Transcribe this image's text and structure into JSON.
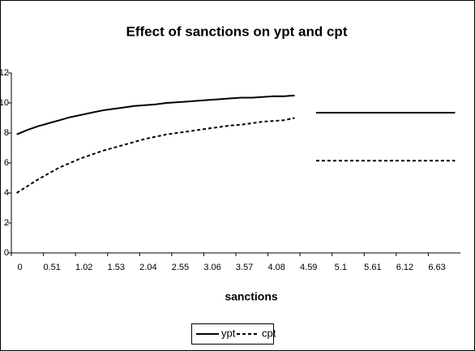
{
  "chart_data": {
    "type": "line",
    "title": "Effect of sanctions on ypt and cpt",
    "x_label": "sanctions",
    "categories": [
      "0",
      null,
      null,
      "0.51",
      null,
      null,
      "1.02",
      null,
      null,
      "1.53",
      null,
      null,
      "2.04",
      null,
      null,
      "2.55",
      null,
      null,
      "3.06",
      null,
      null,
      "3.57",
      null,
      null,
      "4.08",
      null,
      null,
      "4.59",
      null,
      null,
      "5.1",
      null,
      null,
      "5.61",
      null,
      null,
      "6.12",
      null,
      null,
      "6.63",
      null,
      null
    ],
    "series": [
      {
        "name": "ypt",
        "color": "#000000",
        "dash": "solid",
        "values": [
          7.9,
          8.2,
          8.45,
          8.65,
          8.85,
          9.05,
          9.2,
          9.35,
          9.5,
          9.6,
          9.7,
          9.8,
          9.85,
          9.9,
          10.0,
          10.05,
          10.1,
          10.15,
          10.2,
          10.25,
          10.3,
          10.35,
          10.35,
          10.4,
          10.45,
          10.45,
          10.5,
          null,
          9.35,
          9.35,
          9.35,
          9.35,
          9.35,
          9.35,
          9.35,
          9.35,
          9.35,
          9.35,
          9.35,
          9.35,
          9.35,
          9.35
        ]
      },
      {
        "name": "cpt",
        "color": "#000000",
        "dash": "dashed",
        "values": [
          4.0,
          4.45,
          4.9,
          5.3,
          5.7,
          6.0,
          6.3,
          6.55,
          6.8,
          7.0,
          7.2,
          7.4,
          7.6,
          7.75,
          7.9,
          8.0,
          8.1,
          8.2,
          8.3,
          8.4,
          8.5,
          8.55,
          8.65,
          8.75,
          8.8,
          8.85,
          9.0,
          null,
          6.15,
          6.15,
          6.15,
          6.15,
          6.15,
          6.15,
          6.15,
          6.15,
          6.15,
          6.15,
          6.15,
          6.15,
          6.15,
          6.15
        ]
      }
    ],
    "ylim": [
      0,
      12
    ],
    "yticks": [
      0,
      2,
      4,
      6,
      8,
      10,
      12
    ],
    "grid": false,
    "legend": "bottom"
  }
}
